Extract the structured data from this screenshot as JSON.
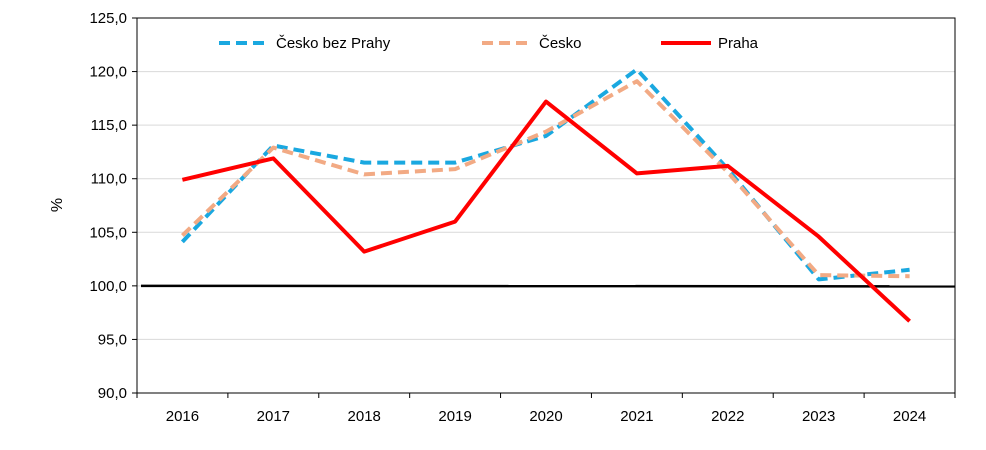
{
  "chart_data": {
    "type": "line",
    "categories": [
      "2016",
      "2017",
      "2018",
      "2019",
      "2020",
      "2021",
      "2022",
      "2023",
      "2024"
    ],
    "ylabel": "%",
    "ylim": [
      90,
      125
    ],
    "yticks": [
      "90,0",
      "95,0",
      "100,0",
      "105,0",
      "110,0",
      "115,0",
      "120,0",
      "125,0"
    ],
    "grid": true,
    "legend": "top",
    "reference_line": 100,
    "series": [
      {
        "name": "Česko bez Prahy",
        "color": "#1aa8e0",
        "style": "dashed",
        "values": [
          104.1,
          113.1,
          111.5,
          111.5,
          114.0,
          120.2,
          110.9,
          100.6,
          101.5
        ]
      },
      {
        "name": "Česko",
        "color": "#f2aa84",
        "style": "dashed",
        "values": [
          104.7,
          112.9,
          110.4,
          110.9,
          114.4,
          119.1,
          110.6,
          101.0,
          100.9
        ]
      },
      {
        "name": "Praha",
        "color": "#ff0000",
        "style": "solid",
        "values": [
          109.9,
          111.9,
          103.2,
          106.0,
          117.2,
          110.5,
          111.2,
          104.6,
          96.7
        ]
      }
    ]
  }
}
